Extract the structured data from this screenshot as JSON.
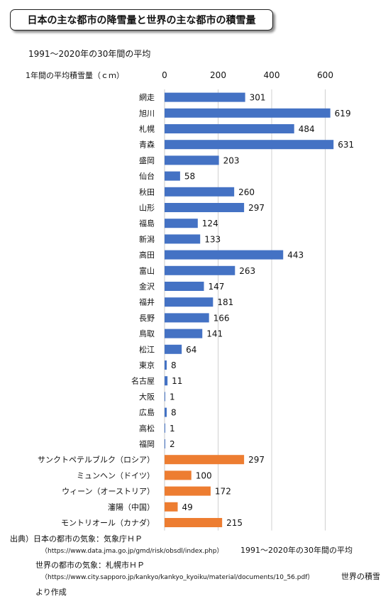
{
  "header": {
    "title": "日本の主な都市の降雪量と世界の主な都市の積雪量",
    "subtitle": "1991～2020年の30年間の平均"
  },
  "chart_data": {
    "type": "bar",
    "orientation": "horizontal",
    "axis_label": "1年間の平均積雪量（ｃｍ）",
    "x_ticks": [
      0,
      200,
      400,
      600
    ],
    "xlim": [
      0,
      700
    ],
    "grid": true,
    "categories": [
      "網走",
      "旭川",
      "札幌",
      "青森",
      "盛岡",
      "仙台",
      "秋田",
      "山形",
      "福島",
      "新潟",
      "高田",
      "富山",
      "金沢",
      "福井",
      "長野",
      "鳥取",
      "松江",
      "東京",
      "名古屋",
      "大阪",
      "広島",
      "高松",
      "福岡",
      "サンクトペテルブルク（ロシア）",
      "ミュンヘン（ドイツ）",
      "ウィーン（オーストリア）",
      "瀋陽（中国）",
      "モントリオール（カナダ）"
    ],
    "values": [
      301,
      619,
      484,
      631,
      203,
      58,
      260,
      297,
      124,
      133,
      443,
      263,
      147,
      181,
      166,
      141,
      64,
      8,
      11,
      1,
      8,
      1,
      2,
      297,
      100,
      172,
      49,
      215
    ],
    "groups": [
      "japan",
      "japan",
      "japan",
      "japan",
      "japan",
      "japan",
      "japan",
      "japan",
      "japan",
      "japan",
      "japan",
      "japan",
      "japan",
      "japan",
      "japan",
      "japan",
      "japan",
      "japan",
      "japan",
      "japan",
      "japan",
      "japan",
      "japan",
      "world",
      "world",
      "world",
      "world",
      "world"
    ],
    "colors": {
      "japan": "#4472C4",
      "world": "#ED7D31"
    }
  },
  "source": {
    "line1": "出典）日本の都市の気象：気象庁ＨＰ",
    "line2_url": "（https://www.data.jma.go.jp/gmd/risk/obsdl/index.php）",
    "line2_note": "1991～2020年の30年間の平均",
    "line3": "世界の都市の気象：札幌市ＨＰ",
    "line4_url": "（https://www.city.sapporo.jp/kankyo/kankyo_kyoiku/material/documents/10_56.pdf）",
    "line4_note": "世界の積雪",
    "line5": "より作成"
  }
}
